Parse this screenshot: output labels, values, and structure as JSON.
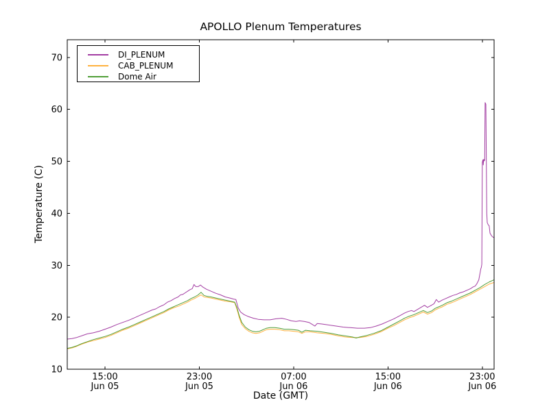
{
  "chart_data": {
    "type": "line",
    "title": "APOLLO Plenum Temperatures",
    "xlabel": "Date (GMT)",
    "ylabel": "Temperature (C)",
    "x_unit_note": "hours since Jun 05 00:00 GMT",
    "x_domain": [
      11.8,
      48.0
    ],
    "y_domain": [
      10,
      73.4
    ],
    "y_ticks": [
      10,
      20,
      30,
      40,
      50,
      60,
      70
    ],
    "x_ticks": [
      {
        "x": 15,
        "line1": "15:00",
        "line2": "Jun 05"
      },
      {
        "x": 23,
        "line1": "23:00",
        "line2": "Jun 05"
      },
      {
        "x": 31,
        "line1": "07:00",
        "line2": "Jun 06"
      },
      {
        "x": 39,
        "line1": "15:00",
        "line2": "Jun 06"
      },
      {
        "x": 47,
        "line1": "23:00",
        "line2": "Jun 06"
      }
    ],
    "grid": false,
    "legend_position": "upper-left",
    "frame_color": "#000000",
    "series": [
      {
        "name": "DI_PLENUM",
        "color": "#a23ca2",
        "points": [
          [
            11.8,
            15.8
          ],
          [
            12.2,
            15.9
          ],
          [
            12.6,
            16.1
          ],
          [
            13.0,
            16.4
          ],
          [
            13.5,
            16.8
          ],
          [
            14.0,
            17.0
          ],
          [
            14.5,
            17.3
          ],
          [
            15.0,
            17.7
          ],
          [
            15.5,
            18.1
          ],
          [
            16.0,
            18.6
          ],
          [
            16.5,
            19.0
          ],
          [
            17.0,
            19.4
          ],
          [
            17.5,
            19.9
          ],
          [
            18.0,
            20.4
          ],
          [
            18.5,
            20.9
          ],
          [
            19.0,
            21.4
          ],
          [
            19.3,
            21.6
          ],
          [
            19.6,
            22.0
          ],
          [
            20.0,
            22.4
          ],
          [
            20.3,
            22.9
          ],
          [
            20.6,
            23.2
          ],
          [
            20.9,
            23.6
          ],
          [
            21.2,
            23.9
          ],
          [
            21.4,
            24.3
          ],
          [
            21.6,
            24.4
          ],
          [
            21.8,
            24.7
          ],
          [
            22.0,
            25.0
          ],
          [
            22.2,
            25.3
          ],
          [
            22.4,
            25.5
          ],
          [
            22.55,
            26.3
          ],
          [
            22.7,
            25.9
          ],
          [
            22.9,
            25.9
          ],
          [
            23.1,
            26.2
          ],
          [
            23.3,
            25.8
          ],
          [
            23.6,
            25.4
          ],
          [
            24.0,
            25.0
          ],
          [
            24.4,
            24.6
          ],
          [
            24.8,
            24.3
          ],
          [
            25.2,
            23.9
          ],
          [
            25.6,
            23.7
          ],
          [
            25.9,
            23.5
          ],
          [
            26.1,
            23.4
          ],
          [
            26.3,
            21.8
          ],
          [
            26.5,
            21.0
          ],
          [
            26.8,
            20.5
          ],
          [
            27.2,
            20.1
          ],
          [
            27.6,
            19.8
          ],
          [
            28.0,
            19.6
          ],
          [
            28.5,
            19.5
          ],
          [
            29.0,
            19.5
          ],
          [
            29.5,
            19.7
          ],
          [
            30.0,
            19.8
          ],
          [
            30.4,
            19.6
          ],
          [
            30.8,
            19.3
          ],
          [
            31.2,
            19.2
          ],
          [
            31.5,
            19.3
          ],
          [
            31.9,
            19.2
          ],
          [
            32.3,
            19.0
          ],
          [
            32.6,
            18.6
          ],
          [
            32.8,
            18.3
          ],
          [
            33.0,
            18.8
          ],
          [
            33.4,
            18.7
          ],
          [
            34.0,
            18.5
          ],
          [
            34.6,
            18.3
          ],
          [
            35.2,
            18.1
          ],
          [
            35.8,
            18.0
          ],
          [
            36.4,
            17.9
          ],
          [
            37.0,
            17.9
          ],
          [
            37.5,
            18.0
          ],
          [
            38.0,
            18.3
          ],
          [
            38.5,
            18.7
          ],
          [
            39.0,
            19.2
          ],
          [
            39.5,
            19.7
          ],
          [
            40.0,
            20.3
          ],
          [
            40.4,
            20.8
          ],
          [
            40.7,
            21.1
          ],
          [
            41.0,
            21.3
          ],
          [
            41.2,
            21.1
          ],
          [
            41.5,
            21.5
          ],
          [
            41.8,
            21.9
          ],
          [
            42.1,
            22.3
          ],
          [
            42.35,
            21.9
          ],
          [
            42.6,
            22.2
          ],
          [
            42.9,
            22.6
          ],
          [
            43.1,
            23.4
          ],
          [
            43.3,
            22.9
          ],
          [
            43.6,
            23.3
          ],
          [
            43.9,
            23.6
          ],
          [
            44.2,
            23.9
          ],
          [
            44.5,
            24.2
          ],
          [
            44.8,
            24.4
          ],
          [
            45.1,
            24.7
          ],
          [
            45.4,
            24.9
          ],
          [
            45.7,
            25.2
          ],
          [
            46.0,
            25.5
          ],
          [
            46.2,
            25.8
          ],
          [
            46.4,
            26.0
          ],
          [
            46.55,
            26.5
          ],
          [
            46.7,
            27.2
          ],
          [
            46.8,
            28.4
          ],
          [
            46.87,
            29.3
          ],
          [
            46.92,
            29.6
          ],
          [
            46.96,
            30.2
          ],
          [
            47.0,
            49.8
          ],
          [
            47.05,
            50.3
          ],
          [
            47.08,
            49.3
          ],
          [
            47.12,
            50.4
          ],
          [
            47.16,
            50.1
          ],
          [
            47.2,
            50.2
          ],
          [
            47.24,
            61.3
          ],
          [
            47.3,
            61.0
          ],
          [
            47.34,
            50.0
          ],
          [
            47.38,
            40.0
          ],
          [
            47.42,
            38.2
          ],
          [
            47.5,
            37.8
          ],
          [
            47.58,
            37.6
          ],
          [
            47.65,
            36.2
          ],
          [
            47.75,
            35.8
          ],
          [
            47.85,
            35.5
          ],
          [
            48.0,
            35.3
          ]
        ]
      },
      {
        "name": "CAB_PLENUM",
        "color": "#ffb13d",
        "points": [
          [
            11.8,
            13.9
          ],
          [
            12.2,
            14.1
          ],
          [
            12.6,
            14.4
          ],
          [
            13.0,
            14.8
          ],
          [
            13.5,
            15.2
          ],
          [
            14.0,
            15.5
          ],
          [
            14.5,
            15.8
          ],
          [
            15.0,
            16.1
          ],
          [
            15.5,
            16.5
          ],
          [
            16.0,
            17.0
          ],
          [
            16.5,
            17.5
          ],
          [
            17.0,
            17.9
          ],
          [
            17.5,
            18.4
          ],
          [
            18.0,
            18.9
          ],
          [
            18.5,
            19.4
          ],
          [
            19.0,
            19.9
          ],
          [
            19.5,
            20.4
          ],
          [
            20.0,
            20.9
          ],
          [
            20.4,
            21.4
          ],
          [
            20.8,
            21.8
          ],
          [
            21.2,
            22.1
          ],
          [
            21.6,
            22.5
          ],
          [
            22.0,
            22.9
          ],
          [
            22.3,
            23.3
          ],
          [
            22.6,
            23.6
          ],
          [
            22.9,
            24.0
          ],
          [
            23.15,
            24.3
          ],
          [
            23.4,
            23.9
          ],
          [
            23.7,
            23.8
          ],
          [
            24.0,
            23.7
          ],
          [
            24.4,
            23.5
          ],
          [
            24.8,
            23.3
          ],
          [
            25.2,
            23.1
          ],
          [
            25.6,
            23.0
          ],
          [
            26.0,
            22.8
          ],
          [
            26.2,
            21.5
          ],
          [
            26.4,
            19.8
          ],
          [
            26.6,
            18.6
          ],
          [
            26.9,
            17.8
          ],
          [
            27.2,
            17.3
          ],
          [
            27.5,
            17.0
          ],
          [
            27.8,
            16.9
          ],
          [
            28.1,
            17.0
          ],
          [
            28.4,
            17.3
          ],
          [
            28.7,
            17.6
          ],
          [
            29.0,
            17.7
          ],
          [
            29.4,
            17.7
          ],
          [
            29.8,
            17.6
          ],
          [
            30.2,
            17.4
          ],
          [
            30.6,
            17.4
          ],
          [
            31.0,
            17.3
          ],
          [
            31.4,
            17.2
          ],
          [
            31.7,
            16.9
          ],
          [
            32.0,
            17.2
          ],
          [
            32.4,
            17.2
          ],
          [
            33.0,
            17.0
          ],
          [
            33.6,
            16.9
          ],
          [
            34.2,
            16.7
          ],
          [
            34.8,
            16.4
          ],
          [
            35.4,
            16.2
          ],
          [
            36.0,
            16.1
          ],
          [
            36.6,
            16.1
          ],
          [
            37.2,
            16.3
          ],
          [
            37.8,
            16.7
          ],
          [
            38.4,
            17.2
          ],
          [
            39.0,
            17.9
          ],
          [
            39.5,
            18.4
          ],
          [
            40.0,
            19.0
          ],
          [
            40.4,
            19.5
          ],
          [
            40.8,
            19.9
          ],
          [
            41.2,
            20.2
          ],
          [
            41.6,
            20.6
          ],
          [
            42.0,
            21.0
          ],
          [
            42.35,
            20.6
          ],
          [
            42.7,
            20.9
          ],
          [
            43.0,
            21.4
          ],
          [
            43.3,
            21.7
          ],
          [
            43.6,
            22.0
          ],
          [
            44.0,
            22.5
          ],
          [
            44.4,
            22.8
          ],
          [
            44.8,
            23.2
          ],
          [
            45.2,
            23.6
          ],
          [
            45.6,
            24.0
          ],
          [
            46.0,
            24.4
          ],
          [
            46.4,
            24.9
          ],
          [
            46.8,
            25.4
          ],
          [
            47.2,
            25.9
          ],
          [
            47.6,
            26.4
          ],
          [
            48.0,
            26.7
          ]
        ]
      },
      {
        "name": "Dome Air",
        "color": "#4f9d35",
        "points": [
          [
            11.8,
            14.0
          ],
          [
            12.2,
            14.2
          ],
          [
            12.6,
            14.5
          ],
          [
            13.0,
            14.9
          ],
          [
            13.5,
            15.3
          ],
          [
            14.0,
            15.7
          ],
          [
            14.5,
            16.0
          ],
          [
            15.0,
            16.3
          ],
          [
            15.5,
            16.7
          ],
          [
            16.0,
            17.2
          ],
          [
            16.5,
            17.7
          ],
          [
            17.0,
            18.1
          ],
          [
            17.5,
            18.6
          ],
          [
            18.0,
            19.1
          ],
          [
            18.5,
            19.6
          ],
          [
            19.0,
            20.1
          ],
          [
            19.5,
            20.6
          ],
          [
            20.0,
            21.1
          ],
          [
            20.4,
            21.6
          ],
          [
            20.8,
            22.0
          ],
          [
            21.2,
            22.4
          ],
          [
            21.6,
            22.8
          ],
          [
            22.0,
            23.2
          ],
          [
            22.3,
            23.6
          ],
          [
            22.6,
            23.9
          ],
          [
            22.9,
            24.3
          ],
          [
            23.15,
            24.8
          ],
          [
            23.4,
            24.2
          ],
          [
            23.7,
            24.0
          ],
          [
            24.0,
            23.9
          ],
          [
            24.4,
            23.7
          ],
          [
            24.8,
            23.5
          ],
          [
            25.2,
            23.3
          ],
          [
            25.6,
            23.1
          ],
          [
            26.0,
            22.9
          ],
          [
            26.2,
            21.8
          ],
          [
            26.4,
            20.2
          ],
          [
            26.6,
            19.0
          ],
          [
            26.9,
            18.1
          ],
          [
            27.2,
            17.6
          ],
          [
            27.5,
            17.3
          ],
          [
            27.8,
            17.2
          ],
          [
            28.1,
            17.3
          ],
          [
            28.4,
            17.6
          ],
          [
            28.7,
            17.9
          ],
          [
            29.0,
            18.0
          ],
          [
            29.4,
            18.0
          ],
          [
            29.8,
            17.9
          ],
          [
            30.2,
            17.7
          ],
          [
            30.6,
            17.7
          ],
          [
            31.0,
            17.6
          ],
          [
            31.4,
            17.5
          ],
          [
            31.7,
            17.1
          ],
          [
            32.0,
            17.5
          ],
          [
            32.4,
            17.4
          ],
          [
            33.0,
            17.3
          ],
          [
            33.6,
            17.1
          ],
          [
            34.2,
            16.9
          ],
          [
            34.8,
            16.6
          ],
          [
            35.4,
            16.4
          ],
          [
            36.0,
            16.2
          ],
          [
            36.3,
            16.0
          ],
          [
            36.6,
            16.2
          ],
          [
            37.2,
            16.5
          ],
          [
            37.8,
            16.9
          ],
          [
            38.4,
            17.4
          ],
          [
            39.0,
            18.1
          ],
          [
            39.5,
            18.7
          ],
          [
            40.0,
            19.3
          ],
          [
            40.4,
            19.8
          ],
          [
            40.8,
            20.2
          ],
          [
            41.2,
            20.5
          ],
          [
            41.6,
            20.9
          ],
          [
            42.0,
            21.3
          ],
          [
            42.35,
            20.9
          ],
          [
            42.7,
            21.2
          ],
          [
            43.0,
            21.7
          ],
          [
            43.3,
            22.0
          ],
          [
            43.6,
            22.3
          ],
          [
            44.0,
            22.8
          ],
          [
            44.4,
            23.1
          ],
          [
            44.8,
            23.5
          ],
          [
            45.2,
            23.9
          ],
          [
            45.6,
            24.3
          ],
          [
            46.0,
            24.7
          ],
          [
            46.4,
            25.2
          ],
          [
            46.8,
            25.7
          ],
          [
            47.2,
            26.3
          ],
          [
            47.6,
            26.8
          ],
          [
            48.0,
            27.2
          ]
        ]
      }
    ]
  }
}
